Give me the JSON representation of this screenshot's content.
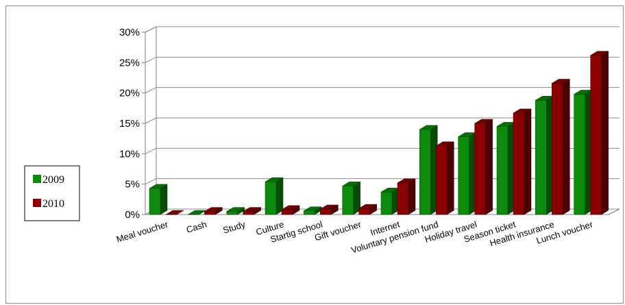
{
  "chart_data": {
    "type": "bar",
    "categories": [
      "Meal voucher",
      "Cash",
      "Study",
      "Culture",
      "Startig school",
      "Gift voucher",
      "Internet",
      "Voluntary pension fund",
      "Holiday travel",
      "Season ticket",
      "Health insurance",
      "Lunch voucher"
    ],
    "series": [
      {
        "name": "2009",
        "values": [
          4.3,
          0.0,
          0.5,
          5.4,
          0.6,
          4.7,
          3.7,
          14.0,
          12.8,
          14.5,
          18.8,
          19.8
        ]
      },
      {
        "name": "2010",
        "values": [
          0.0,
          0.5,
          0.5,
          0.8,
          0.9,
          1.0,
          5.2,
          11.3,
          15.0,
          16.7,
          21.6,
          26.2
        ]
      }
    ],
    "ylim": [
      0,
      30
    ],
    "yticks": [
      "0%",
      "5%",
      "10%",
      "15%",
      "20%",
      "25%",
      "30%"
    ],
    "grid": true,
    "legend_position": "left",
    "colors": {
      "2009": "#0b8a0b",
      "2010": "#8b0000"
    }
  }
}
